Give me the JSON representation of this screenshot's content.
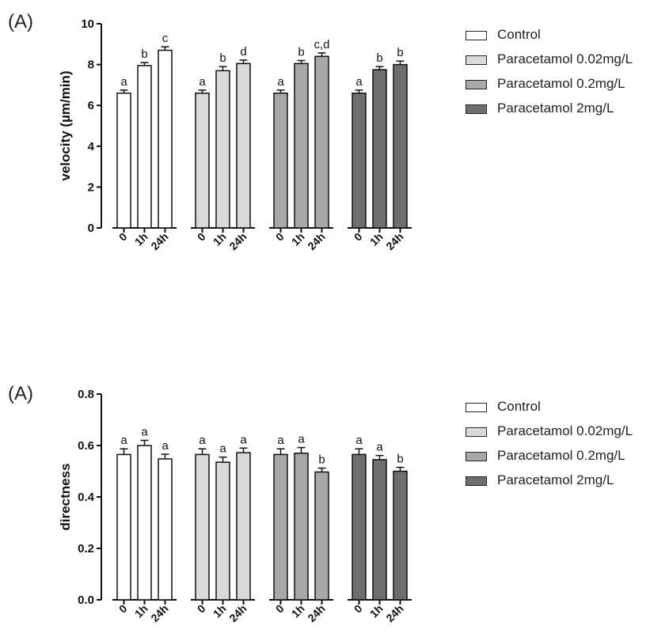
{
  "chart_data": [
    {
      "type": "bar",
      "panel_label": "(A)",
      "ylabel": "velocity (µm/min)",
      "ylim": [
        0,
        10
      ],
      "yticks": [
        "0",
        "2",
        "4",
        "6",
        "8",
        "10"
      ],
      "categories": [
        "0",
        "1h",
        "24h"
      ],
      "series": [
        {
          "name": "Control",
          "color": "#ffffff",
          "values": [
            6.6,
            7.95,
            8.7
          ],
          "errors": [
            0.15,
            0.15,
            0.17
          ],
          "labels": [
            "a",
            "b",
            "c"
          ]
        },
        {
          "name": "Paracetamol 0.02mg/L",
          "color": "#d9d9d9",
          "values": [
            6.6,
            7.7,
            8.05
          ],
          "errors": [
            0.15,
            0.2,
            0.17
          ],
          "labels": [
            "a",
            "b",
            "d"
          ]
        },
        {
          "name": "Paracetamol 0.2mg/L",
          "color": "#a9a7a8",
          "values": [
            6.6,
            8.05,
            8.4
          ],
          "errors": [
            0.15,
            0.15,
            0.17
          ],
          "labels": [
            "a",
            "b",
            "c,d"
          ]
        },
        {
          "name": "Paracetamol 2mg/L",
          "color": "#6e6e6e",
          "values": [
            6.6,
            7.75,
            8.0
          ],
          "errors": [
            0.15,
            0.15,
            0.17
          ],
          "labels": [
            "a",
            "b",
            "b"
          ]
        }
      ],
      "legend": [
        "Control",
        "Paracetamol 0.02mg/L",
        "Paracetamol 0.2mg/L",
        "Paracetamol 2mg/L"
      ]
    },
    {
      "type": "bar",
      "panel_label": "(A)",
      "ylabel": "directness",
      "ylim": [
        0,
        0.8
      ],
      "yticks": [
        "0.0",
        "0.2",
        "0.4",
        "0.6",
        "0.8"
      ],
      "categories": [
        "0",
        "1h",
        "24h"
      ],
      "series": [
        {
          "name": "Control",
          "color": "#ffffff",
          "values": [
            0.565,
            0.6,
            0.548
          ],
          "errors": [
            0.022,
            0.02,
            0.018
          ],
          "labels": [
            "a",
            "a",
            "a"
          ]
        },
        {
          "name": "Paracetamol 0.02mg/L",
          "color": "#d9d9d9",
          "values": [
            0.565,
            0.535,
            0.572
          ],
          "errors": [
            0.022,
            0.02,
            0.018
          ],
          "labels": [
            "a",
            "a",
            "a"
          ]
        },
        {
          "name": "Paracetamol 0.2mg/L",
          "color": "#a9a7a8",
          "values": [
            0.565,
            0.57,
            0.497
          ],
          "errors": [
            0.022,
            0.022,
            0.015
          ],
          "labels": [
            "a",
            "a",
            "b"
          ]
        },
        {
          "name": "Paracetamol 2mg/L",
          "color": "#6e6e6e",
          "values": [
            0.565,
            0.545,
            0.5
          ],
          "errors": [
            0.022,
            0.016,
            0.015
          ],
          "labels": [
            "a",
            "a",
            "b"
          ]
        }
      ],
      "legend": [
        "Control",
        "Paracetamol 0.02mg/L",
        "Paracetamol 0.2mg/L",
        "Paracetamol 2mg/L"
      ]
    }
  ]
}
